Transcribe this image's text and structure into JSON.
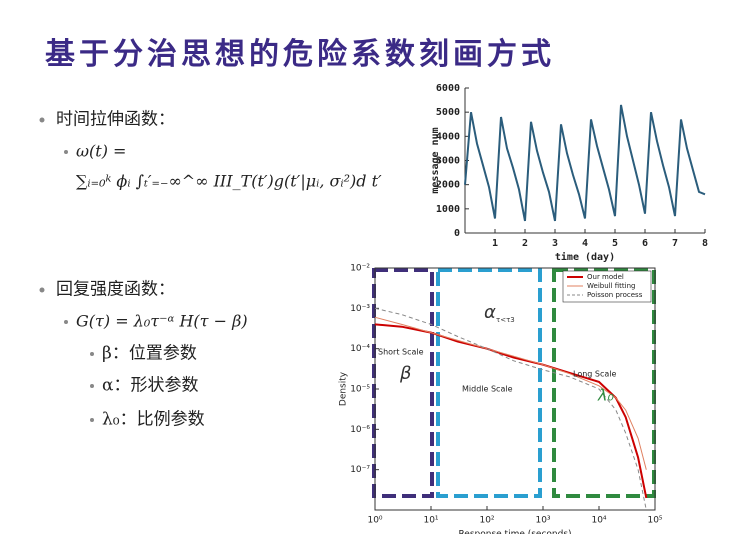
{
  "title": "基于分治思想的危险系数刻画方式",
  "bullets": [
    {
      "label": "时间拉伸函数：",
      "formula": [
        "ω(t) =",
        "∑ᵢ₌₀ᵏ ϕᵢ ∫ₜ′₌₋∞^∞ III_T(t′)g(t′|μᵢ, σᵢ²)d t′"
      ]
    },
    {
      "label": "回复强度函数：",
      "formula": [
        "G(τ) = λ₀τ⁻ᵅ H(τ − β)"
      ],
      "items": [
        "β：位置参数",
        "α：形状参数",
        "λ₀：比例参数"
      ]
    }
  ],
  "chart_data": [
    {
      "type": "line",
      "xlabel": "time (day)",
      "ylabel": "message num",
      "x": [
        0,
        0.2,
        0.4,
        0.6,
        0.8,
        1,
        1.2,
        1.4,
        1.6,
        1.8,
        2,
        2.2,
        2.4,
        2.6,
        2.8,
        3,
        3.2,
        3.4,
        3.6,
        3.8,
        4,
        4.2,
        4.4,
        4.6,
        4.8,
        5,
        5.2,
        5.4,
        5.6,
        5.8,
        6,
        6.2,
        6.4,
        6.6,
        6.8,
        7,
        7.2,
        7.4,
        7.6,
        7.8,
        8
      ],
      "series": [
        {
          "color": "#2b5d7c",
          "values": [
            2000,
            5000,
            3700,
            2800,
            1900,
            600,
            4800,
            3500,
            2700,
            1800,
            500,
            4600,
            3400,
            2500,
            1700,
            500,
            4500,
            3300,
            2400,
            1600,
            600,
            4700,
            3600,
            2700,
            1800,
            700,
            5300,
            4000,
            3000,
            2000,
            800,
            5000,
            3800,
            2800,
            1900,
            700,
            4700,
            3500,
            2600,
            1700,
            1600
          ]
        }
      ],
      "xlim": [
        0,
        8
      ],
      "ylim": [
        0,
        6000
      ],
      "xticks": [
        1,
        2,
        3,
        4,
        5,
        6,
        7,
        8
      ],
      "yticks": [
        0,
        1000,
        2000,
        3000,
        4000,
        5000,
        6000
      ]
    },
    {
      "type": "line",
      "xscale": "log",
      "yscale": "log",
      "xlabel": "Response time (seconds)",
      "ylabel": "Density",
      "x": [
        1,
        3,
        10,
        30,
        100,
        300,
        1000,
        3000,
        10000,
        20000,
        30000,
        50000,
        70000
      ],
      "series": [
        {
          "name": "Our model",
          "color": "#cc0000",
          "values": [
            0.0004,
            0.00035,
            0.00025,
            0.00015,
            0.0001,
            6e-05,
            4e-05,
            2.5e-05,
            1.5e-05,
            6e-06,
            2e-06,
            2e-07,
            2e-08
          ]
        },
        {
          "name": "Weibull fitting",
          "color": "#e08060",
          "values": [
            0.0006,
            0.0004,
            0.00025,
            0.00016,
            0.0001,
            6.5e-05,
            4e-05,
            2.4e-05,
            1.2e-05,
            6e-06,
            3e-06,
            6e-07,
            1e-07
          ]
        },
        {
          "name": "Poisson process",
          "color": "#888888",
          "dash": true,
          "values": [
            0.001,
            0.0007,
            0.0004,
            0.0002,
            0.0001,
            5e-05,
            3e-05,
            2e-05,
            1e-05,
            3e-06,
            8e-07,
            1e-07,
            1e-08
          ]
        }
      ],
      "xlim": [
        1,
        100000
      ],
      "ylim": [
        1e-08,
        0.01
      ],
      "xticks": [
        {
          "value": 1,
          "label": "10⁰"
        },
        {
          "value": 10,
          "label": "10¹"
        },
        {
          "value": 100,
          "label": "10²"
        },
        {
          "value": 1000,
          "label": "10³"
        },
        {
          "value": 10000,
          "label": "10⁴"
        },
        {
          "value": 100000,
          "label": "10⁵"
        }
      ],
      "yticks": [
        {
          "value": 0.01,
          "label": "10⁻²"
        },
        {
          "value": 0.001,
          "label": "10⁻³"
        },
        {
          "value": 0.0001,
          "label": "10⁻⁴"
        },
        {
          "value": 1e-05,
          "label": "10⁻⁵"
        },
        {
          "value": 1e-06,
          "label": "10⁻⁶"
        },
        {
          "value": 1e-07,
          "label": "10⁻⁷"
        }
      ],
      "legend": "upper right",
      "annotations": [
        "Short Scale",
        "Middle Scale",
        "Long Scale",
        "β",
        "α",
        "τ<τ3",
        "λ₀"
      ]
    }
  ]
}
